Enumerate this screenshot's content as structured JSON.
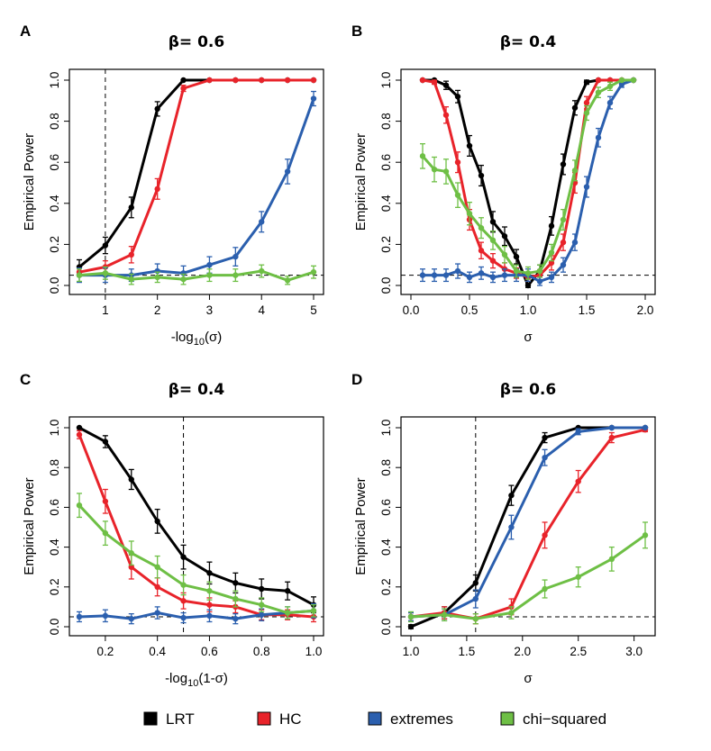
{
  "colors": {
    "LRT": "#000000",
    "HC": "#e8232a",
    "extremes": "#2b5fae",
    "chi-squared": "#6ebf45"
  },
  "legend": [
    {
      "label": "LRT",
      "color": "#000000"
    },
    {
      "label": "HC",
      "color": "#e8232a"
    },
    {
      "label": "extremes",
      "color": "#2b5fae"
    },
    {
      "label": "chi−squared",
      "color": "#6ebf45"
    }
  ],
  "chart_data": [
    {
      "panel": "A",
      "title": "β= 0.6",
      "type": "line",
      "xlabel": "-log10(σ)",
      "ylabel": "Empirical Power",
      "xlim": [
        0.5,
        5
      ],
      "ylim": [
        0,
        1
      ],
      "xticks": [
        1,
        2,
        3,
        4,
        5
      ],
      "yticks": [
        0.0,
        0.2,
        0.4,
        0.6,
        0.8,
        1.0
      ],
      "hline": 0.05,
      "vline": 1,
      "x": [
        0.5,
        1.0,
        1.5,
        2.0,
        2.5,
        3.0,
        3.5,
        4.0,
        4.5,
        5.0
      ],
      "series": [
        {
          "name": "LRT",
          "values": [
            0.09,
            0.195,
            0.38,
            0.86,
            1.0,
            1.0,
            1.0,
            1.0,
            1.0,
            1.0
          ],
          "errors": [
            0.035,
            0.04,
            0.05,
            0.035,
            0,
            0,
            0,
            0,
            0,
            0
          ]
        },
        {
          "name": "HC",
          "values": [
            0.065,
            0.09,
            0.15,
            0.47,
            0.96,
            1.0,
            1.0,
            1.0,
            1.0,
            1.0
          ],
          "errors": [
            0.02,
            0.03,
            0.04,
            0.05,
            0.015,
            0,
            0,
            0,
            0,
            0
          ]
        },
        {
          "name": "extremes",
          "values": [
            0.05,
            0.05,
            0.05,
            0.07,
            0.06,
            0.1,
            0.14,
            0.31,
            0.555,
            0.91
          ],
          "errors": [
            0.035,
            0.035,
            0.03,
            0.035,
            0.035,
            0.04,
            0.045,
            0.05,
            0.06,
            0.035
          ]
        },
        {
          "name": "chi-squared",
          "values": [
            0.05,
            0.06,
            0.03,
            0.04,
            0.03,
            0.05,
            0.05,
            0.07,
            0.025,
            0.065
          ],
          "errors": [
            0.03,
            0.03,
            0.025,
            0.025,
            0.025,
            0.03,
            0.03,
            0.03,
            0.02,
            0.03
          ]
        }
      ]
    },
    {
      "panel": "B",
      "title": "β= 0.4",
      "type": "line",
      "xlabel": "σ",
      "ylabel": "Empirical Power",
      "xlim": [
        0.0,
        2.0
      ],
      "ylim": [
        0,
        1
      ],
      "xticks": [
        0.0,
        0.5,
        1.0,
        1.5,
        2.0
      ],
      "yticks": [
        0.0,
        0.2,
        0.4,
        0.6,
        0.8,
        1.0
      ],
      "hline": 0.05,
      "x": [
        0.1,
        0.2,
        0.3,
        0.4,
        0.5,
        0.6,
        0.7,
        0.8,
        0.9,
        1.0,
        1.1,
        1.2,
        1.3,
        1.4,
        1.5,
        1.6,
        1.7,
        1.8,
        1.9
      ],
      "series": [
        {
          "name": "LRT",
          "values": [
            1.0,
            1.0,
            0.975,
            0.92,
            0.68,
            0.535,
            0.31,
            0.24,
            0.14,
            0.0,
            0.07,
            0.29,
            0.59,
            0.865,
            0.99,
            1.0,
            1.0,
            1.0,
            1.0
          ],
          "errors": [
            0,
            0,
            0.02,
            0.03,
            0.05,
            0.05,
            0.05,
            0.045,
            0.035,
            0.01,
            0.03,
            0.045,
            0.05,
            0.035,
            0.01,
            0,
            0,
            0,
            0
          ]
        },
        {
          "name": "HC",
          "values": [
            1.0,
            0.99,
            0.83,
            0.6,
            0.32,
            0.17,
            0.12,
            0.08,
            0.06,
            0.04,
            0.05,
            0.11,
            0.21,
            0.5,
            0.89,
            1.0,
            1.0,
            1.0,
            1.0
          ],
          "errors": [
            0,
            0.01,
            0.04,
            0.05,
            0.05,
            0.04,
            0.035,
            0.03,
            0.025,
            0.02,
            0.025,
            0.035,
            0.04,
            0.05,
            0.03,
            0,
            0,
            0,
            0
          ]
        },
        {
          "name": "extremes",
          "values": [
            0.05,
            0.05,
            0.05,
            0.07,
            0.04,
            0.06,
            0.04,
            0.05,
            0.05,
            0.05,
            0.02,
            0.04,
            0.1,
            0.21,
            0.48,
            0.72,
            0.89,
            0.98,
            1.0
          ],
          "errors": [
            0.03,
            0.03,
            0.03,
            0.035,
            0.025,
            0.03,
            0.025,
            0.03,
            0.03,
            0.03,
            0.02,
            0.025,
            0.035,
            0.04,
            0.05,
            0.045,
            0.03,
            0.015,
            0
          ]
        },
        {
          "name": "chi-squared",
          "values": [
            0.63,
            0.565,
            0.555,
            0.44,
            0.35,
            0.28,
            0.22,
            0.15,
            0.07,
            0.06,
            0.07,
            0.16,
            0.32,
            0.56,
            0.84,
            0.94,
            0.97,
            1.0,
            1.0
          ],
          "errors": [
            0.06,
            0.06,
            0.06,
            0.06,
            0.055,
            0.05,
            0.045,
            0.04,
            0.03,
            0.03,
            0.03,
            0.04,
            0.05,
            0.05,
            0.035,
            0.025,
            0.02,
            0,
            0
          ]
        }
      ]
    },
    {
      "panel": "C",
      "title": "β= 0.4",
      "type": "line",
      "xlabel": "-log10(1-σ)",
      "ylabel": "Empirical Power",
      "xlim": [
        0.1,
        1.0
      ],
      "ylim": [
        0,
        1
      ],
      "xticks": [
        0.2,
        0.4,
        0.6,
        0.8,
        1.0
      ],
      "yticks": [
        0.0,
        0.2,
        0.4,
        0.6,
        0.8,
        1.0
      ],
      "hline": 0.05,
      "vline": 0.5,
      "x": [
        0.1,
        0.2,
        0.3,
        0.4,
        0.5,
        0.6,
        0.7,
        0.8,
        0.9,
        1.0
      ],
      "series": [
        {
          "name": "LRT",
          "values": [
            1.0,
            0.93,
            0.74,
            0.53,
            0.35,
            0.27,
            0.22,
            0.19,
            0.18,
            0.11
          ],
          "errors": [
            0,
            0.03,
            0.05,
            0.06,
            0.06,
            0.055,
            0.05,
            0.05,
            0.045,
            0.04
          ]
        },
        {
          "name": "HC",
          "values": [
            0.965,
            0.63,
            0.3,
            0.2,
            0.13,
            0.11,
            0.1,
            0.06,
            0.06,
            0.05
          ],
          "errors": [
            0.02,
            0.06,
            0.06,
            0.045,
            0.04,
            0.035,
            0.03,
            0.025,
            0.025,
            0.025
          ]
        },
        {
          "name": "extremes",
          "values": [
            0.05,
            0.055,
            0.04,
            0.07,
            0.045,
            0.055,
            0.04,
            0.06,
            0.07,
            0.08
          ],
          "errors": [
            0.025,
            0.03,
            0.025,
            0.03,
            0.025,
            0.03,
            0.025,
            0.03,
            0.03,
            0.035
          ]
        },
        {
          "name": "chi-squared",
          "values": [
            0.61,
            0.47,
            0.37,
            0.3,
            0.21,
            0.18,
            0.14,
            0.11,
            0.07,
            0.08
          ],
          "errors": [
            0.06,
            0.06,
            0.06,
            0.055,
            0.05,
            0.045,
            0.04,
            0.035,
            0.03,
            0.03
          ]
        }
      ]
    },
    {
      "panel": "D",
      "title": "β= 0.6",
      "type": "line",
      "xlabel": "σ",
      "ylabel": "Empirical Power",
      "xlim": [
        1.0,
        3.1
      ],
      "ylim": [
        0,
        1
      ],
      "xticks": [
        1.0,
        1.5,
        2.0,
        2.5,
        3.0
      ],
      "yticks": [
        0.0,
        0.2,
        0.4,
        0.6,
        0.8,
        1.0
      ],
      "hline": 0.05,
      "vline": 1.58,
      "x": [
        1.0,
        1.3,
        1.58,
        1.9,
        2.2,
        2.5,
        2.8,
        3.1
      ],
      "series": [
        {
          "name": "LRT",
          "values": [
            0.0,
            0.07,
            0.22,
            0.66,
            0.95,
            1.0,
            1.0,
            1.0
          ],
          "errors": [
            0.01,
            0.03,
            0.04,
            0.05,
            0.025,
            0,
            0,
            0
          ]
        },
        {
          "name": "HC",
          "values": [
            0.05,
            0.07,
            0.04,
            0.1,
            0.46,
            0.73,
            0.95,
            0.99
          ],
          "errors": [
            0.02,
            0.03,
            0.025,
            0.04,
            0.065,
            0.055,
            0.025,
            0.01
          ]
        },
        {
          "name": "extremes",
          "values": [
            0.05,
            0.06,
            0.14,
            0.5,
            0.85,
            0.98,
            1.0,
            1.0
          ],
          "errors": [
            0.02,
            0.03,
            0.045,
            0.06,
            0.04,
            0.015,
            0,
            0
          ]
        },
        {
          "name": "chi-squared",
          "values": [
            0.05,
            0.06,
            0.04,
            0.07,
            0.19,
            0.25,
            0.34,
            0.46
          ],
          "errors": [
            0.025,
            0.03,
            0.025,
            0.03,
            0.045,
            0.05,
            0.06,
            0.065
          ]
        }
      ]
    }
  ]
}
